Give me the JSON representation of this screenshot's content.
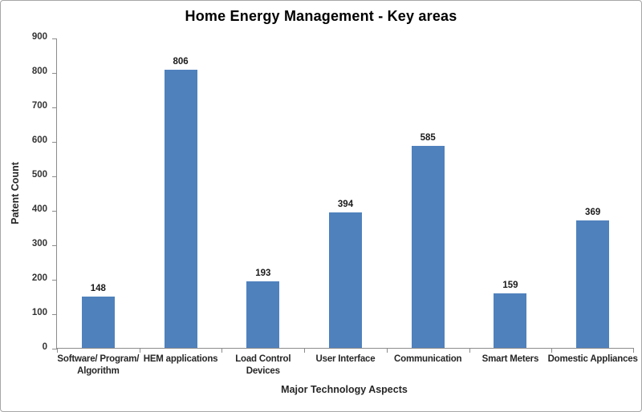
{
  "chart_data": {
    "type": "bar",
    "title": "Home Energy Management - Key areas",
    "xlabel": "Major Technology Aspects",
    "ylabel": "Patent Count",
    "categories": [
      "Software/ Program/ Algorithm",
      "HEM applications",
      "Load Control Devices",
      "User Interface",
      "Communication",
      "Smart Meters",
      "Domestic Appliances"
    ],
    "values": [
      148,
      806,
      193,
      394,
      585,
      159,
      369
    ],
    "ylim": [
      0,
      900
    ],
    "ytick_step": 100,
    "grid": "off",
    "legend": "none",
    "bar_color": "#4F81BD",
    "axis_color": "#8C8C8C"
  }
}
